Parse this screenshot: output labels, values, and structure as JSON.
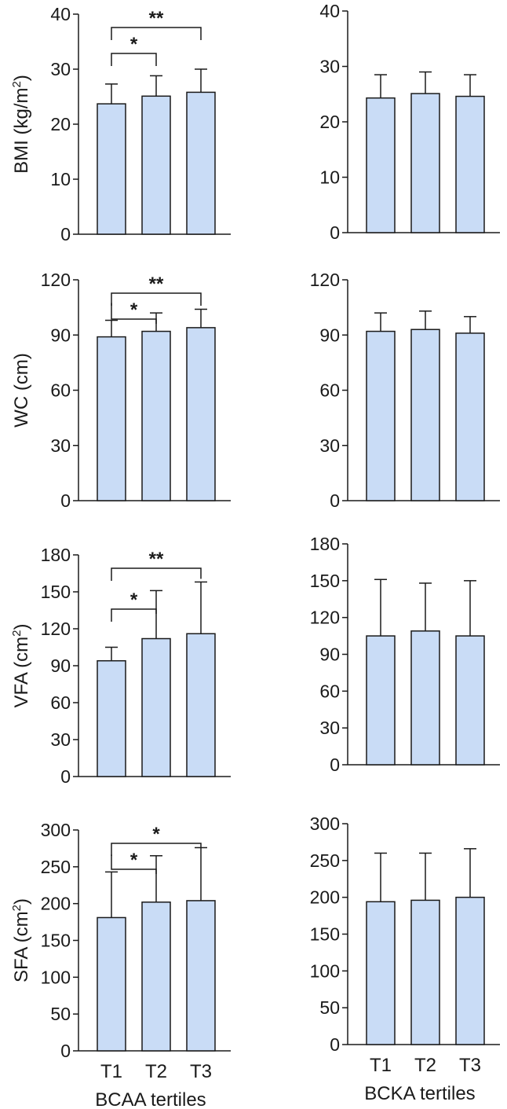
{
  "figure": {
    "bar_fill": "#c9dcf6",
    "stroke": "#1a1a1a"
  },
  "chart_data": [
    {
      "id": "bmi-bcaa",
      "type": "bar",
      "ylabel": "BMI (kg/m²)",
      "ylim": [
        0,
        40
      ],
      "yticks": [
        "0",
        "10",
        "20",
        "30",
        "40"
      ],
      "categories": [
        "T1",
        "T2",
        "T3"
      ],
      "values": [
        23.7,
        25.1,
        25.8
      ],
      "errors": [
        3.6,
        3.7,
        4.2
      ],
      "significance": [
        {
          "from": 0,
          "to": 1,
          "label": "*"
        },
        {
          "from": 0,
          "to": 2,
          "label": "**"
        }
      ]
    },
    {
      "id": "bmi-bcka",
      "type": "bar",
      "ylabel": "",
      "ylim": [
        0,
        40
      ],
      "yticks": [
        "0",
        "10",
        "20",
        "30",
        "40"
      ],
      "categories": [
        "T1",
        "T2",
        "T3"
      ],
      "values": [
        24.3,
        25.1,
        24.6
      ],
      "errors": [
        4.2,
        3.9,
        3.9
      ],
      "significance": []
    },
    {
      "id": "wc-bcaa",
      "type": "bar",
      "ylabel": "WC (cm)",
      "ylim": [
        0,
        120
      ],
      "yticks": [
        "0",
        "30",
        "60",
        "90",
        "120"
      ],
      "categories": [
        "T1",
        "T2",
        "T3"
      ],
      "values": [
        89,
        92,
        94
      ],
      "errors": [
        9,
        10,
        10
      ],
      "significance": [
        {
          "from": 0,
          "to": 1,
          "label": "*"
        },
        {
          "from": 0,
          "to": 2,
          "label": "**"
        }
      ]
    },
    {
      "id": "wc-bcka",
      "type": "bar",
      "ylabel": "",
      "ylim": [
        0,
        120
      ],
      "yticks": [
        "0",
        "30",
        "60",
        "90",
        "120"
      ],
      "categories": [
        "T1",
        "T2",
        "T3"
      ],
      "values": [
        92,
        93,
        91
      ],
      "errors": [
        10,
        10,
        9
      ],
      "significance": []
    },
    {
      "id": "vfa-bcaa",
      "type": "bar",
      "ylabel": "VFA (cm²)",
      "ylim": [
        0,
        180
      ],
      "yticks": [
        "0",
        "30",
        "60",
        "90",
        "120",
        "150",
        "180"
      ],
      "categories": [
        "T1",
        "T2",
        "T3"
      ],
      "values": [
        94,
        112,
        116
      ],
      "errors": [
        11,
        39,
        42
      ],
      "significance": [
        {
          "from": 0,
          "to": 1,
          "label": "*"
        },
        {
          "from": 0,
          "to": 2,
          "label": "**"
        }
      ]
    },
    {
      "id": "vfa-bcka",
      "type": "bar",
      "ylabel": "",
      "ylim": [
        0,
        180
      ],
      "yticks": [
        "0",
        "30",
        "60",
        "90",
        "120",
        "150",
        "180"
      ],
      "categories": [
        "T1",
        "T2",
        "T3"
      ],
      "values": [
        105,
        109,
        105
      ],
      "errors": [
        46,
        39,
        45
      ],
      "significance": []
    },
    {
      "id": "sfa-bcaa",
      "type": "bar",
      "ylabel": "SFA (cm²)",
      "xlabel": "BCAA tertiles",
      "ylim": [
        0,
        300
      ],
      "yticks": [
        "0",
        "50",
        "100",
        "150",
        "200",
        "250",
        "300"
      ],
      "categories": [
        "T1",
        "T2",
        "T3"
      ],
      "values": [
        181,
        202,
        204
      ],
      "errors": [
        62,
        63,
        72
      ],
      "significance": [
        {
          "from": 0,
          "to": 1,
          "label": "*"
        },
        {
          "from": 0,
          "to": 2,
          "label": "*"
        }
      ]
    },
    {
      "id": "sfa-bcka",
      "type": "bar",
      "ylabel": "",
      "xlabel": "BCKA tertiles",
      "ylim": [
        0,
        300
      ],
      "yticks": [
        "0",
        "50",
        "100",
        "150",
        "200",
        "250",
        "300"
      ],
      "categories": [
        "T1",
        "T2",
        "T3"
      ],
      "values": [
        194,
        196,
        200
      ],
      "errors": [
        66,
        64,
        66
      ],
      "significance": []
    }
  ]
}
